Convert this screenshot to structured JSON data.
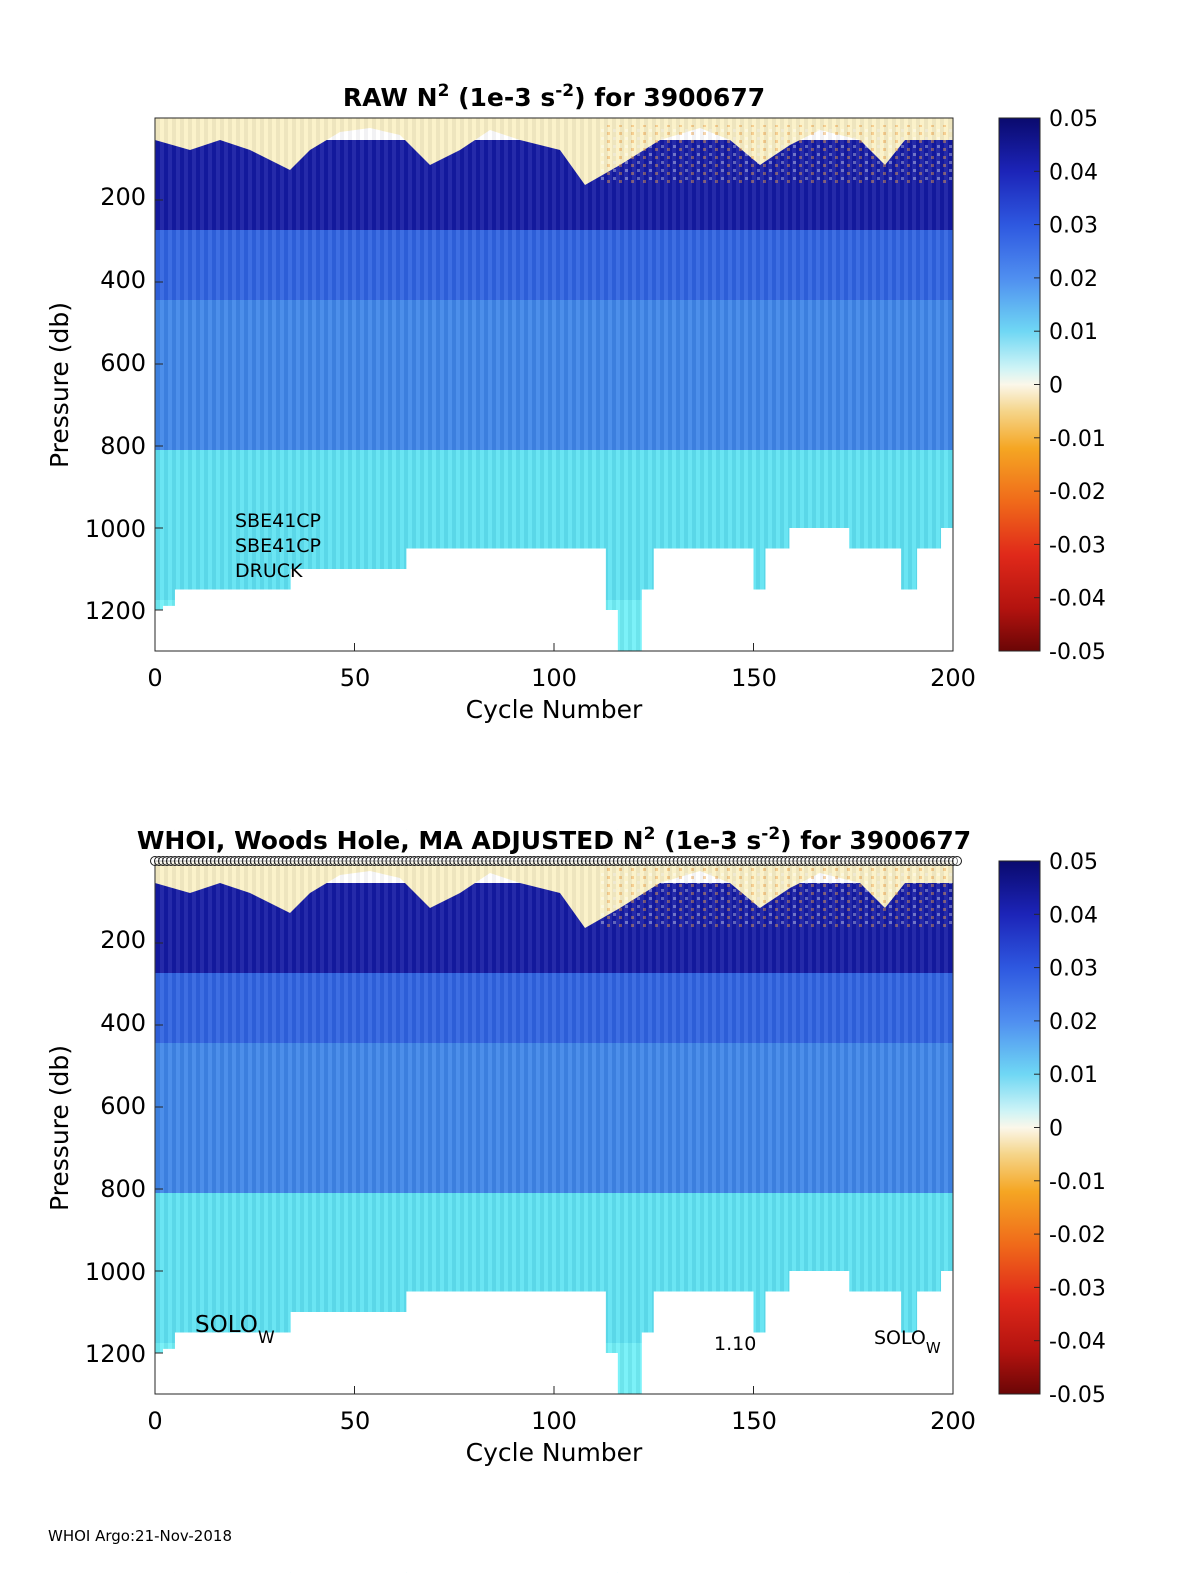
{
  "footer": "WHOI Argo:21-Nov-2018",
  "chart_data": [
    {
      "type": "heatmap",
      "title": {
        "prefix": "RAW N",
        "sup1": "2",
        "mid": " (1e-3 s",
        "sup2": "-2",
        "suffix": ") for 3900677"
      },
      "xlabel": "Cycle Number",
      "ylabel": "Pressure (db)",
      "xlim": [
        0,
        200
      ],
      "ylim": [
        0,
        1300
      ],
      "y_reversed": true,
      "xticks": [
        "0",
        "50",
        "100",
        "150",
        "200"
      ],
      "yticks": [
        "200",
        "400",
        "600",
        "800",
        "1000",
        "1200"
      ],
      "colorbar": {
        "range": [
          -0.05,
          0.05
        ],
        "ticks": [
          "0.05",
          "0.04",
          "0.03",
          "0.02",
          "0.01",
          "0",
          "-0.01",
          "-0.02",
          "-0.03",
          "-0.04",
          "-0.05"
        ]
      },
      "annotations": [
        "SBE41CP",
        "SBE41CP",
        "DRUCK"
      ],
      "profile_max_pressure_by_cycle_range": [
        {
          "cycles": [
            0,
            2
          ],
          "max_pressure": 1200
        },
        {
          "cycles": [
            2,
            5
          ],
          "max_pressure": 1190
        },
        {
          "cycles": [
            5,
            34
          ],
          "max_pressure": 1150
        },
        {
          "cycles": [
            34,
            63
          ],
          "max_pressure": 1100
        },
        {
          "cycles": [
            63,
            113
          ],
          "max_pressure": 1050
        },
        {
          "cycles": [
            113,
            116
          ],
          "max_pressure": 1200
        },
        {
          "cycles": [
            116,
            122
          ],
          "max_pressure": 1300
        },
        {
          "cycles": [
            122,
            125
          ],
          "max_pressure": 1150
        },
        {
          "cycles": [
            125,
            150
          ],
          "max_pressure": 1050
        },
        {
          "cycles": [
            150,
            153
          ],
          "max_pressure": 1150
        },
        {
          "cycles": [
            153,
            159
          ],
          "max_pressure": 1050
        },
        {
          "cycles": [
            159,
            174
          ],
          "max_pressure": 1000
        },
        {
          "cycles": [
            174,
            187
          ],
          "max_pressure": 1050
        },
        {
          "cycles": [
            187,
            191
          ],
          "max_pressure": 1150
        },
        {
          "cycles": [
            191,
            197
          ],
          "max_pressure": 1050
        },
        {
          "cycles": [
            197,
            200
          ],
          "max_pressure": 1000
        }
      ],
      "value_bands_by_pressure": [
        {
          "pressure": [
            0,
            50
          ],
          "n2": -0.01
        },
        {
          "pressure": [
            50,
            200
          ],
          "n2": 0.045
        },
        {
          "pressure": [
            200,
            280
          ],
          "n2": 0.035
        },
        {
          "pressure": [
            280,
            450
          ],
          "n2": 0.022
        },
        {
          "pressure": [
            450,
            1300
          ],
          "n2": 0.01
        }
      ]
    },
    {
      "type": "heatmap",
      "title": {
        "prefix": "WHOI, Woods Hole, MA  ADJUSTED N",
        "sup1": "2",
        "mid": " (1e-3 s",
        "sup2": "-2",
        "suffix": ") for 3900677"
      },
      "xlabel": "Cycle Number",
      "ylabel": "Pressure (db)",
      "xlim": [
        0,
        200
      ],
      "ylim": [
        0,
        1300
      ],
      "y_reversed": true,
      "xticks": [
        "0",
        "50",
        "100",
        "150",
        "200"
      ],
      "yticks": [
        "200",
        "400",
        "600",
        "800",
        "1000",
        "1200"
      ],
      "colorbar": {
        "range": [
          -0.05,
          0.05
        ],
        "ticks": [
          "0.05",
          "0.04",
          "0.03",
          "0.02",
          "0.01",
          "0",
          "-0.01",
          "-0.02",
          "-0.03",
          "-0.04",
          "-0.05"
        ]
      },
      "annotations": [
        {
          "text": "SOLO",
          "sub": "W"
        },
        {
          "text": "1.10",
          "sub": ""
        },
        {
          "text": "SOLO",
          "sub": "W"
        }
      ],
      "qc_markers": "open circles at every cycle along the top edge",
      "profile_max_pressure_by_cycle_range": "same as raw panel",
      "value_bands_by_pressure": "same as raw panel"
    }
  ]
}
